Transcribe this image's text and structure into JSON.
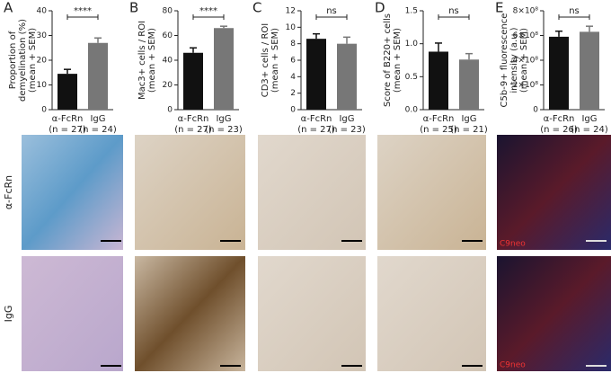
{
  "chart_data": [
    {
      "type": "bar",
      "panel_label": "A",
      "ylabel": [
        "Proportion of",
        "demyelination (%)",
        "(mean + SEM)"
      ],
      "categories": [
        "α-FcRn",
        "IgG"
      ],
      "n_labels": [
        "(n = 27)",
        "(n = 24)"
      ],
      "values": [
        14.5,
        27
      ],
      "errors": [
        1.8,
        2
      ],
      "colors": [
        "#111111",
        "#777777"
      ],
      "ylim": [
        0,
        40
      ],
      "yticks": [
        0,
        10,
        20,
        30,
        40
      ],
      "significance": "****"
    },
    {
      "type": "bar",
      "panel_label": "B",
      "ylabel": [
        "Mac3+ cells / ROI",
        "(mean + SEM)"
      ],
      "categories": [
        "α-FcRn",
        "IgG"
      ],
      "n_labels": [
        "(n = 27)",
        "(n = 23)"
      ],
      "values": [
        46,
        66
      ],
      "errors": [
        4,
        1.5
      ],
      "colors": [
        "#111111",
        "#777777"
      ],
      "ylim": [
        0,
        80
      ],
      "yticks": [
        0,
        20,
        40,
        60,
        80
      ],
      "significance": "****"
    },
    {
      "type": "bar",
      "panel_label": "C",
      "ylabel": [
        "CD3+ cells / ROI",
        "(mean + SEM)"
      ],
      "categories": [
        "α-FcRn",
        "IgG"
      ],
      "n_labels": [
        "(n = 27)",
        "(n = 23)"
      ],
      "values": [
        8.6,
        8.0
      ],
      "errors": [
        0.6,
        0.8
      ],
      "colors": [
        "#111111",
        "#777777"
      ],
      "ylim": [
        0,
        12
      ],
      "yticks": [
        0,
        2,
        4,
        6,
        8,
        10,
        12
      ],
      "significance": "ns"
    },
    {
      "type": "bar",
      "panel_label": "D",
      "ylabel": [
        "Score of B220+ cells",
        "(mean + SEM)"
      ],
      "categories": [
        "α-FcRn",
        "IgG"
      ],
      "n_labels": [
        "(n = 25)",
        "(n = 21)"
      ],
      "values": [
        0.88,
        0.76
      ],
      "errors": [
        0.13,
        0.09
      ],
      "colors": [
        "#111111",
        "#777777"
      ],
      "ylim": [
        0,
        1.5
      ],
      "yticks": [
        {
          "value": 0,
          "label": "0.0"
        },
        0.5,
        {
          "value": 1,
          "label": "1.0"
        },
        1.5
      ],
      "significance": "ns"
    },
    {
      "type": "bar",
      "panel_label": "E",
      "ylabel": [
        "C5b-9+ fluorescence",
        "intensity (a.u.)",
        "(mean + SEM)"
      ],
      "categories": [
        "α-FcRn",
        "IgG"
      ],
      "n_labels": [
        "(n = 26)",
        "(n = 24)"
      ],
      "values": [
        590000000,
        630000000
      ],
      "errors": [
        45000000,
        45000000
      ],
      "colors": [
        "#111111",
        "#777777"
      ],
      "ylim": [
        0,
        800000000
      ],
      "yticks": [
        0,
        {
          "value": 200000000,
          "label": "2×10⁸"
        },
        {
          "value": 400000000,
          "label": "4×10⁸"
        },
        {
          "value": 600000000,
          "label": "6×10⁸"
        },
        {
          "value": 800000000,
          "label": "8×10⁸"
        }
      ],
      "significance": "ns"
    }
  ],
  "image_panel": {
    "row_labels": [
      "α-FcRn",
      "IgG"
    ],
    "stain_labels": [
      "C9neo",
      "C9neo"
    ]
  }
}
